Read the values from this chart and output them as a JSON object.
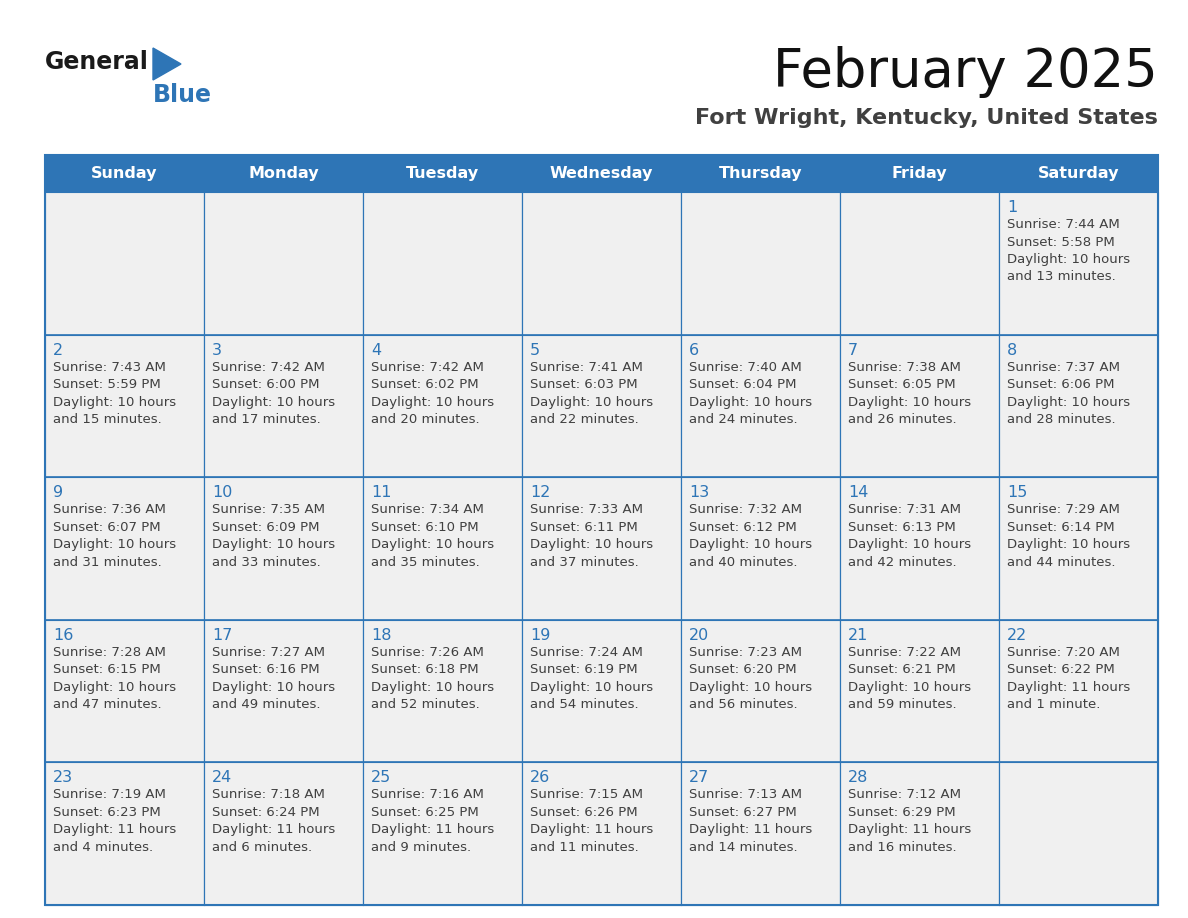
{
  "title": "February 2025",
  "subtitle": "Fort Wright, Kentucky, United States",
  "days_of_week": [
    "Sunday",
    "Monday",
    "Tuesday",
    "Wednesday",
    "Thursday",
    "Friday",
    "Saturday"
  ],
  "header_bg": "#2e75b6",
  "header_text": "#ffffff",
  "cell_bg_light": "#f0f0f0",
  "cell_bg_white": "#ffffff",
  "border_color": "#2e75b6",
  "day_number_color": "#2e75b6",
  "text_color": "#404040",
  "calendar_data": [
    [
      null,
      null,
      null,
      null,
      null,
      null,
      1
    ],
    [
      2,
      3,
      4,
      5,
      6,
      7,
      8
    ],
    [
      9,
      10,
      11,
      12,
      13,
      14,
      15
    ],
    [
      16,
      17,
      18,
      19,
      20,
      21,
      22
    ],
    [
      23,
      24,
      25,
      26,
      27,
      28,
      null
    ]
  ],
  "sunrise_data": {
    "1": "7:44 AM",
    "2": "7:43 AM",
    "3": "7:42 AM",
    "4": "7:42 AM",
    "5": "7:41 AM",
    "6": "7:40 AM",
    "7": "7:38 AM",
    "8": "7:37 AM",
    "9": "7:36 AM",
    "10": "7:35 AM",
    "11": "7:34 AM",
    "12": "7:33 AM",
    "13": "7:32 AM",
    "14": "7:31 AM",
    "15": "7:29 AM",
    "16": "7:28 AM",
    "17": "7:27 AM",
    "18": "7:26 AM",
    "19": "7:24 AM",
    "20": "7:23 AM",
    "21": "7:22 AM",
    "22": "7:20 AM",
    "23": "7:19 AM",
    "24": "7:18 AM",
    "25": "7:16 AM",
    "26": "7:15 AM",
    "27": "7:13 AM",
    "28": "7:12 AM"
  },
  "sunset_data": {
    "1": "5:58 PM",
    "2": "5:59 PM",
    "3": "6:00 PM",
    "4": "6:02 PM",
    "5": "6:03 PM",
    "6": "6:04 PM",
    "7": "6:05 PM",
    "8": "6:06 PM",
    "9": "6:07 PM",
    "10": "6:09 PM",
    "11": "6:10 PM",
    "12": "6:11 PM",
    "13": "6:12 PM",
    "14": "6:13 PM",
    "15": "6:14 PM",
    "16": "6:15 PM",
    "17": "6:16 PM",
    "18": "6:18 PM",
    "19": "6:19 PM",
    "20": "6:20 PM",
    "21": "6:21 PM",
    "22": "6:22 PM",
    "23": "6:23 PM",
    "24": "6:24 PM",
    "25": "6:25 PM",
    "26": "6:26 PM",
    "27": "6:27 PM",
    "28": "6:29 PM"
  },
  "daylight_data": {
    "1": "10 hours\nand 13 minutes.",
    "2": "10 hours\nand 15 minutes.",
    "3": "10 hours\nand 17 minutes.",
    "4": "10 hours\nand 20 minutes.",
    "5": "10 hours\nand 22 minutes.",
    "6": "10 hours\nand 24 minutes.",
    "7": "10 hours\nand 26 minutes.",
    "8": "10 hours\nand 28 minutes.",
    "9": "10 hours\nand 31 minutes.",
    "10": "10 hours\nand 33 minutes.",
    "11": "10 hours\nand 35 minutes.",
    "12": "10 hours\nand 37 minutes.",
    "13": "10 hours\nand 40 minutes.",
    "14": "10 hours\nand 42 minutes.",
    "15": "10 hours\nand 44 minutes.",
    "16": "10 hours\nand 47 minutes.",
    "17": "10 hours\nand 49 minutes.",
    "18": "10 hours\nand 52 minutes.",
    "19": "10 hours\nand 54 minutes.",
    "20": "10 hours\nand 56 minutes.",
    "21": "10 hours\nand 59 minutes.",
    "22": "11 hours\nand 1 minute.",
    "23": "11 hours\nand 4 minutes.",
    "24": "11 hours\nand 6 minutes.",
    "25": "11 hours\nand 9 minutes.",
    "26": "11 hours\nand 11 minutes.",
    "27": "11 hours\nand 14 minutes.",
    "28": "11 hours\nand 16 minutes."
  },
  "logo_text_general": "General",
  "logo_text_blue": "Blue",
  "logo_triangle_color": "#2e75b6",
  "fig_width": 11.88,
  "fig_height": 9.18,
  "dpi": 100
}
